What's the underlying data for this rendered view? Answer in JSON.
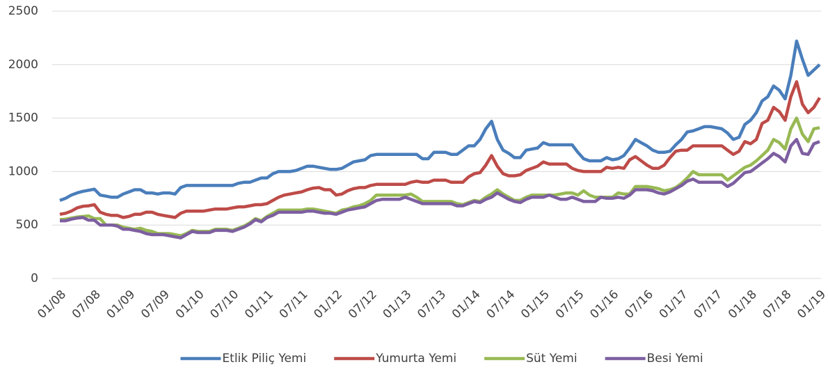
{
  "chart_data": {
    "type": "line",
    "categories": [
      "01/08",
      null,
      null,
      null,
      null,
      null,
      "07/08",
      null,
      null,
      null,
      null,
      null,
      "01/09",
      null,
      null,
      null,
      null,
      null,
      "07/09",
      null,
      null,
      null,
      null,
      null,
      "01/10",
      null,
      null,
      null,
      null,
      null,
      "07/10",
      null,
      null,
      null,
      null,
      null,
      "01/11",
      null,
      null,
      null,
      null,
      null,
      "07/11",
      null,
      null,
      null,
      null,
      null,
      "01/12",
      null,
      null,
      null,
      null,
      null,
      "07/12",
      null,
      null,
      null,
      null,
      null,
      "01/13",
      null,
      null,
      null,
      null,
      null,
      "07/13",
      null,
      null,
      null,
      null,
      null,
      "01/14",
      null,
      null,
      null,
      null,
      null,
      "07/14",
      null,
      null,
      null,
      null,
      null,
      "01/15",
      null,
      null,
      null,
      null,
      null,
      "07/15",
      null,
      null,
      null,
      null,
      null,
      "01/16",
      null,
      null,
      null,
      null,
      null,
      "07/16",
      null,
      null,
      null,
      null,
      null,
      "01/17",
      null,
      null,
      null,
      null,
      null,
      "07/17",
      null,
      null,
      null,
      null,
      null,
      "01/18",
      null,
      null,
      null,
      null,
      null,
      "07/18",
      null,
      null,
      null,
      null,
      null,
      "01/19"
    ],
    "series": [
      {
        "name": "Etlik Piliç Yemi",
        "color": "#4a7ebb",
        "values": [
          730,
          750,
          780,
          800,
          815,
          825,
          835,
          780,
          770,
          760,
          760,
          790,
          810,
          830,
          830,
          800,
          800,
          790,
          800,
          800,
          790,
          850,
          870,
          870,
          870,
          870,
          870,
          870,
          870,
          870,
          870,
          890,
          900,
          900,
          920,
          940,
          940,
          980,
          1000,
          1000,
          1000,
          1010,
          1030,
          1050,
          1050,
          1040,
          1030,
          1020,
          1020,
          1030,
          1060,
          1090,
          1100,
          1110,
          1150,
          1160,
          1160,
          1160,
          1160,
          1160,
          1160,
          1160,
          1160,
          1120,
          1120,
          1180,
          1180,
          1180,
          1160,
          1160,
          1200,
          1240,
          1240,
          1300,
          1400,
          1470,
          1300,
          1200,
          1170,
          1130,
          1130,
          1200,
          1210,
          1220,
          1270,
          1250,
          1250,
          1250,
          1250,
          1250,
          1180,
          1120,
          1100,
          1100,
          1100,
          1130,
          1110,
          1120,
          1150,
          1220,
          1300,
          1270,
          1240,
          1200,
          1180,
          1180,
          1190,
          1250,
          1300,
          1370,
          1380,
          1400,
          1420,
          1420,
          1410,
          1400,
          1360,
          1300,
          1320,
          1440,
          1480,
          1550,
          1660,
          1700,
          1800,
          1760,
          1680,
          1900,
          2220,
          2050,
          1900,
          1950,
          2000
        ]
      },
      {
        "name": "Yumurta Yemi",
        "color": "#be4b48",
        "values": [
          600,
          610,
          630,
          660,
          675,
          680,
          690,
          620,
          600,
          590,
          590,
          570,
          580,
          600,
          600,
          620,
          620,
          600,
          590,
          580,
          570,
          610,
          630,
          630,
          630,
          630,
          640,
          650,
          650,
          650,
          660,
          670,
          670,
          680,
          690,
          690,
          700,
          730,
          760,
          780,
          790,
          800,
          810,
          830,
          845,
          850,
          830,
          830,
          780,
          790,
          820,
          840,
          850,
          850,
          870,
          880,
          880,
          880,
          880,
          880,
          880,
          900,
          910,
          900,
          900,
          920,
          920,
          920,
          900,
          900,
          900,
          950,
          980,
          990,
          1060,
          1150,
          1050,
          980,
          960,
          960,
          970,
          1010,
          1030,
          1050,
          1090,
          1070,
          1070,
          1070,
          1070,
          1030,
          1010,
          1000,
          1000,
          1000,
          1000,
          1040,
          1030,
          1040,
          1030,
          1110,
          1140,
          1100,
          1060,
          1030,
          1030,
          1060,
          1130,
          1190,
          1200,
          1200,
          1240,
          1240,
          1240,
          1240,
          1240,
          1240,
          1200,
          1160,
          1190,
          1280,
          1260,
          1300,
          1450,
          1480,
          1600,
          1560,
          1480,
          1700,
          1840,
          1630,
          1550,
          1600,
          1690
        ]
      },
      {
        "name": "Süt Yemi",
        "color": "#98b954",
        "values": [
          550,
          555,
          565,
          575,
          580,
          585,
          560,
          560,
          500,
          500,
          500,
          480,
          470,
          460,
          470,
          450,
          440,
          420,
          420,
          420,
          410,
          400,
          420,
          450,
          440,
          440,
          440,
          460,
          460,
          460,
          450,
          470,
          490,
          520,
          560,
          540,
          580,
          610,
          640,
          640,
          640,
          640,
          640,
          650,
          650,
          640,
          630,
          620,
          610,
          640,
          650,
          670,
          680,
          700,
          730,
          780,
          780,
          780,
          780,
          780,
          780,
          790,
          760,
          720,
          720,
          720,
          720,
          720,
          720,
          700,
          690,
          710,
          730,
          720,
          760,
          790,
          830,
          790,
          760,
          730,
          730,
          760,
          780,
          780,
          780,
          780,
          780,
          790,
          800,
          800,
          780,
          820,
          780,
          760,
          760,
          760,
          760,
          800,
          790,
          790,
          860,
          860,
          860,
          850,
          840,
          820,
          830,
          850,
          890,
          940,
          1000,
          970,
          970,
          970,
          970,
          970,
          920,
          960,
          1000,
          1040,
          1060,
          1100,
          1150,
          1200,
          1300,
          1270,
          1210,
          1400,
          1500,
          1350,
          1280,
          1400,
          1410
        ]
      },
      {
        "name": "Besi Yemi",
        "color": "#7d5fa0",
        "values": [
          540,
          540,
          555,
          565,
          570,
          545,
          545,
          500,
          500,
          500,
          490,
          460,
          460,
          450,
          440,
          420,
          410,
          410,
          410,
          400,
          390,
          380,
          410,
          440,
          430,
          430,
          430,
          450,
          450,
          450,
          440,
          460,
          480,
          510,
          550,
          530,
          570,
          590,
          620,
          620,
          620,
          620,
          620,
          630,
          630,
          620,
          610,
          610,
          600,
          620,
          640,
          650,
          660,
          670,
          700,
          730,
          740,
          740,
          740,
          740,
          760,
          740,
          720,
          700,
          700,
          700,
          700,
          700,
          700,
          680,
          680,
          700,
          720,
          710,
          740,
          760,
          800,
          770,
          740,
          720,
          710,
          740,
          760,
          760,
          760,
          780,
          760,
          740,
          740,
          760,
          740,
          720,
          720,
          720,
          760,
          750,
          750,
          760,
          750,
          780,
          830,
          830,
          830,
          820,
          800,
          790,
          810,
          840,
          870,
          910,
          930,
          900,
          900,
          900,
          900,
          900,
          860,
          890,
          940,
          990,
          1000,
          1040,
          1080,
          1120,
          1170,
          1140,
          1090,
          1240,
          1300,
          1170,
          1160,
          1260,
          1280
        ]
      }
    ],
    "ylim": [
      0,
      2500
    ],
    "yticks": [
      0,
      500,
      1000,
      1500,
      2000,
      2500
    ],
    "grid": true,
    "legend": "bottom"
  }
}
